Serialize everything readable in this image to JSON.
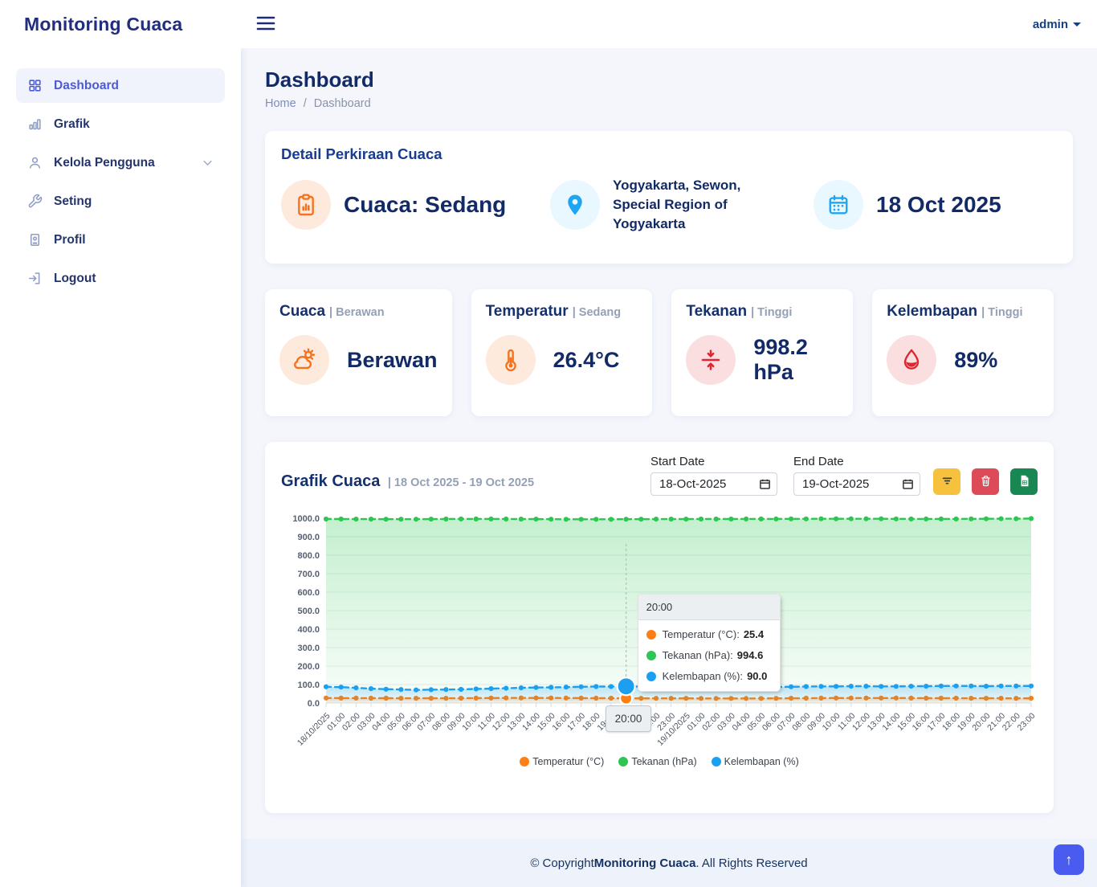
{
  "header": {
    "logo": "Monitoring Cuaca",
    "user": "admin"
  },
  "sidebar": {
    "items": [
      {
        "label": "Dashboard",
        "icon": "grid-icon",
        "active": true
      },
      {
        "label": "Grafik",
        "icon": "bar-chart-icon",
        "active": false
      },
      {
        "label": "Kelola Pengguna",
        "icon": "user-icon",
        "active": false,
        "has_submenu": true
      },
      {
        "label": "Seting",
        "icon": "wrench-icon",
        "active": false
      },
      {
        "label": "Profil",
        "icon": "id-card-icon",
        "active": false
      },
      {
        "label": "Logout",
        "icon": "logout-icon",
        "active": false
      }
    ]
  },
  "page": {
    "title": "Dashboard",
    "breadcrumb": [
      "Home",
      "/",
      "Dashboard"
    ]
  },
  "detail_card": {
    "title": "Detail Perkiraan Cuaca",
    "weather": "Cuaca: Sedang",
    "location": "Yogyakarta, Sewon, Special Region of Yogyakarta",
    "date": "18 Oct 2025"
  },
  "stat_cards": [
    {
      "title": "Cuaca",
      "status": "| Berawan",
      "value": "Berawan",
      "icon": "cloud-sun-icon",
      "accent": "orange"
    },
    {
      "title": "Temperatur",
      "status": "| Sedang",
      "value": "26.4°C",
      "icon": "thermometer-icon",
      "accent": "orange"
    },
    {
      "title": "Tekanan",
      "status": "| Tinggi",
      "value": "998.2 hPa",
      "icon": "compress-icon",
      "accent": "red"
    },
    {
      "title": "Kelembapan",
      "status": "| Tinggi",
      "value": "89%",
      "icon": "droplet-icon",
      "accent": "red"
    }
  ],
  "graph_card": {
    "title": "Grafik Cuaca",
    "range": "| 18 Oct 2025 - 19 Oct 2025",
    "start_date_label": "Start Date",
    "start_date_value": "18-Oct-2025",
    "end_date_label": "End Date",
    "end_date_value": "19-Oct-2025",
    "buttons": [
      {
        "icon": "filter-icon",
        "color": "#f6c23e"
      },
      {
        "icon": "trash-icon",
        "color": "#dd4b58"
      },
      {
        "icon": "file-excel-icon",
        "color": "#198754"
      }
    ]
  },
  "chart_data": {
    "type": "line",
    "title": "Grafik Cuaca",
    "ylim": [
      0,
      1000
    ],
    "y_tick_step": 100,
    "grid": true,
    "legend_position": "bottom",
    "hover_index": 20,
    "hover_label": "20:00",
    "x_labels": [
      "18/10/2025",
      "01:00",
      "02:00",
      "03:00",
      "04:00",
      "05:00",
      "06:00",
      "07:00",
      "08:00",
      "09:00",
      "10:00",
      "11:00",
      "12:00",
      "13:00",
      "14:00",
      "15:00",
      "16:00",
      "17:00",
      "18:00",
      "19:00",
      "20:00",
      "21:00",
      "22:00",
      "23:00",
      "19/10/2025",
      "01:00",
      "02:00",
      "03:00",
      "04:00",
      "05:00",
      "06:00",
      "07:00",
      "08:00",
      "09:00",
      "10:00",
      "11:00",
      "12:00",
      "13:00",
      "14:00",
      "15:00",
      "16:00",
      "17:00",
      "18:00",
      "19:00",
      "20:00",
      "21:00",
      "22:00",
      "23:00"
    ],
    "series": [
      {
        "name": "Temperatur (°C)",
        "color": "#fd7e14",
        "values": [
          26.8,
          26.6,
          26.4,
          26.2,
          26.0,
          25.8,
          25.7,
          25.6,
          25.8,
          26.1,
          26.5,
          26.9,
          27.2,
          27.4,
          27.4,
          27.2,
          27.0,
          26.7,
          26.3,
          25.9,
          25.4,
          25.3,
          25.2,
          25.1,
          25.1,
          25.0,
          25.0,
          24.9,
          24.9,
          25.0,
          25.3,
          25.7,
          26.1,
          26.5,
          26.8,
          27.0,
          27.1,
          27.0,
          26.8,
          26.5,
          26.3,
          26.1,
          25.9,
          25.7,
          25.6,
          25.5,
          25.4,
          25.5
        ]
      },
      {
        "name": "Tekanan (hPa)",
        "color": "#2dc653",
        "values": [
          995.8,
          995.5,
          995.2,
          995.0,
          994.8,
          994.7,
          994.9,
          995.2,
          995.6,
          996.0,
          996.2,
          996.1,
          995.8,
          995.4,
          995.0,
          994.7,
          994.5,
          994.4,
          994.4,
          994.5,
          994.6,
          994.8,
          995.0,
          995.2,
          995.4,
          995.6,
          995.7,
          995.8,
          995.9,
          996.0,
          996.2,
          996.4,
          996.6,
          996.8,
          997.0,
          997.1,
          997.0,
          996.8,
          996.5,
          996.3,
          996.1,
          996.0,
          996.2,
          996.5,
          996.8,
          997.2,
          997.6,
          998.2
        ]
      },
      {
        "name": "Kelembapan (%)",
        "color": "#1ba0f1",
        "values": [
          88,
          86,
          82,
          78,
          75,
          73,
          71,
          72,
          73,
          74,
          76,
          78,
          80,
          82,
          84,
          85,
          86,
          88,
          89,
          89,
          90,
          89,
          89,
          88,
          87,
          86,
          86,
          85,
          85,
          86,
          87,
          88,
          89,
          90,
          90,
          91,
          91,
          90,
          90,
          91,
          91,
          92,
          92,
          92,
          91,
          92,
          92,
          92
        ]
      }
    ]
  },
  "tooltip": {
    "time": "20:00",
    "rows": [
      {
        "label": "Temperatur (°C):",
        "value": "25.4",
        "color": "#fd7e14"
      },
      {
        "label": "Tekanan (hPa):",
        "value": "994.6",
        "color": "#2dc653"
      },
      {
        "label": "Kelembapan (%):",
        "value": "90.0",
        "color": "#1ba0f1"
      }
    ]
  },
  "footer": {
    "prefix": "© Copyright ",
    "brand": "Monitoring Cuaca",
    "suffix": ". All Rights Reserved"
  },
  "scroll_top": {
    "glyph": "↑"
  },
  "colors": {
    "accent_orange": "#f4731c",
    "accent_blue": "#1ea6f2",
    "accent_red": "#e02531",
    "active_indigo": "#4c5bd4",
    "navy": "#122a66",
    "button_yellow": "#f6c23e",
    "button_red": "#dd4b58",
    "button_green": "#198754",
    "chart_orange": "#fd7e14",
    "chart_green": "#2dc653",
    "chart_blue": "#1ba0f1",
    "footer_bg": "#edf2fb",
    "scrolltop_blue": "#4a5cf0"
  }
}
